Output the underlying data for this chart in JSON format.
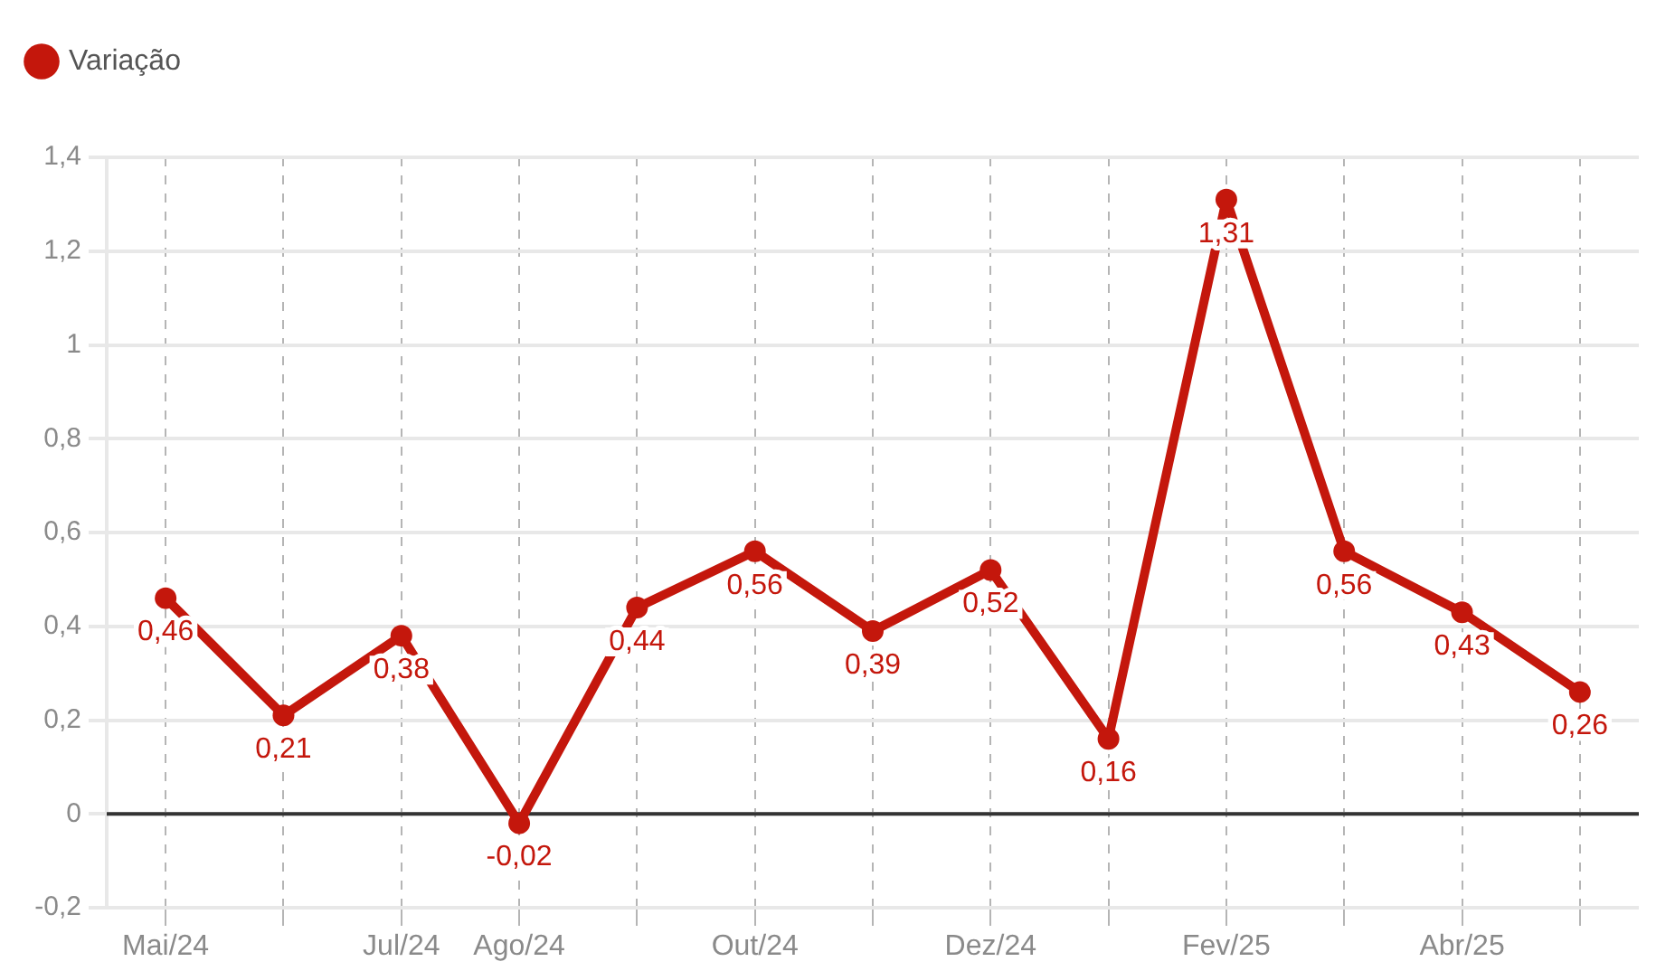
{
  "chart_data": {
    "type": "line",
    "categories": [
      "Mai/24",
      null,
      "Jul/24",
      "Ago/24",
      null,
      "Out/24",
      null,
      "Dez/24",
      null,
      "Fev/25",
      null,
      "Abr/25",
      null
    ],
    "series": [
      {
        "name": "Variação",
        "color": "#c4170c",
        "values": [
          0.46,
          0.21,
          0.38,
          -0.02,
          0.44,
          0.56,
          0.39,
          0.52,
          0.16,
          1.31,
          0.56,
          0.43,
          0.26
        ],
        "value_labels": [
          "0,46",
          "0,21",
          "0,38",
          "-0,02",
          "0,44",
          "0,56",
          "0,39",
          "0,52",
          "0,16",
          "1,31",
          "0,56",
          "0,43",
          "0,26"
        ]
      }
    ],
    "ylim": [
      -0.2,
      1.4
    ],
    "yticks": [
      {
        "value": -0.2,
        "label": "-0,2"
      },
      0,
      {
        "value": 0.2,
        "label": "0,2"
      },
      {
        "value": 0.4,
        "label": "0,4"
      },
      {
        "value": 0.6,
        "label": "0,6"
      },
      {
        "value": 0.8,
        "label": "0,8"
      },
      1,
      {
        "value": 1.2,
        "label": "1,2"
      },
      {
        "value": 1.4,
        "label": "1,4"
      }
    ],
    "grid": true,
    "legend": "top left",
    "marker": "circle",
    "ref_lines": [
      {
        "axis": "y",
        "value": 0,
        "color": "#333333"
      }
    ]
  }
}
